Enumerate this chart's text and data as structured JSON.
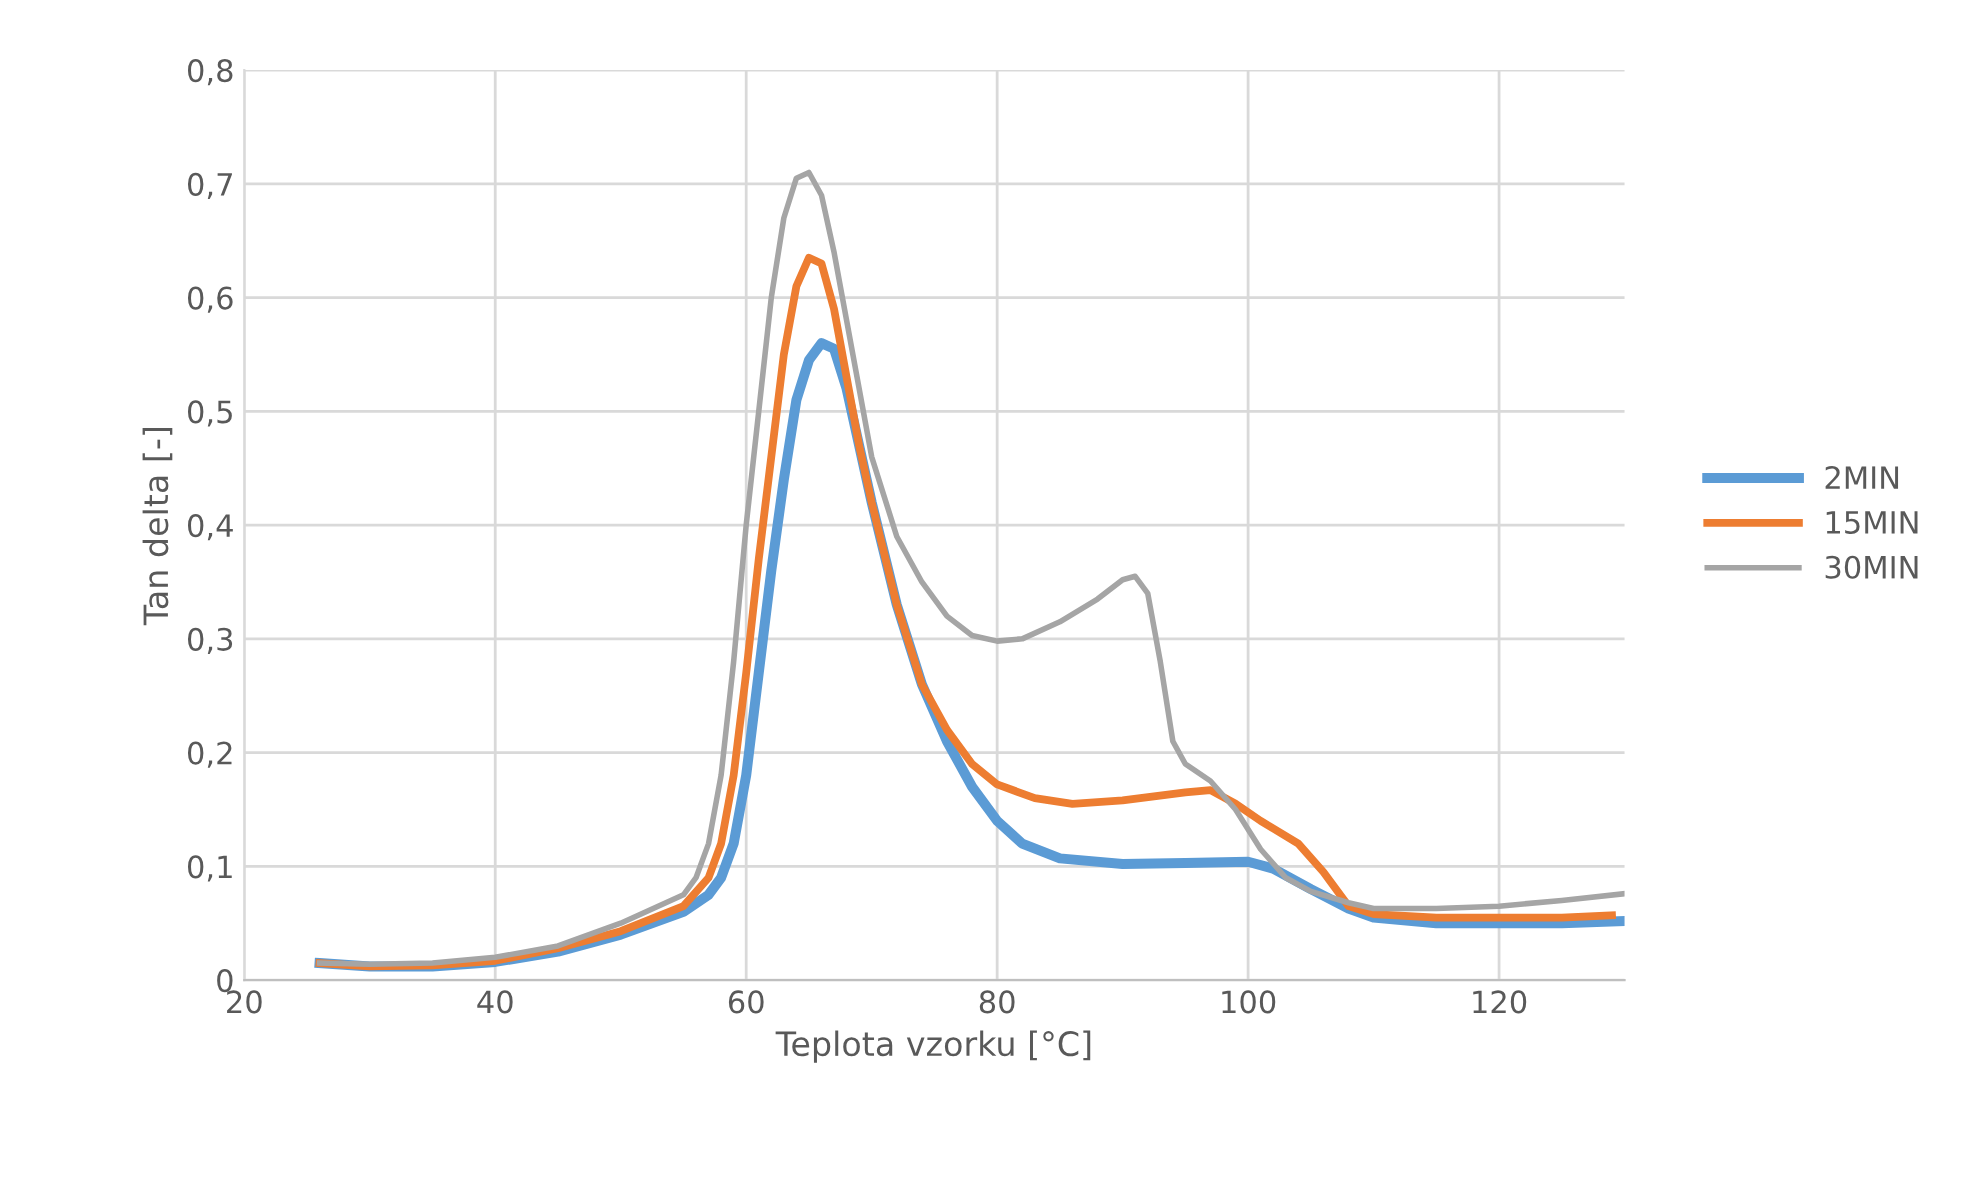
{
  "chart_data": {
    "type": "line",
    "xlabel": "Teplota vzorku [°C]",
    "ylabel": "Tan delta [-]",
    "xlim": [
      20,
      130
    ],
    "xticks": [
      20,
      40,
      60,
      80,
      100,
      120
    ],
    "ylim": [
      0,
      0.8
    ],
    "yticks": [
      0,
      {
        "value": 0.1,
        "label": "0,1"
      },
      {
        "value": 0.2,
        "label": "0,2"
      },
      {
        "value": 0.3,
        "label": "0,3"
      },
      {
        "value": 0.4,
        "label": "0,4"
      },
      {
        "value": 0.5,
        "label": "0,5"
      },
      {
        "value": 0.6,
        "label": "0,6"
      },
      {
        "value": 0.7,
        "label": "0,7"
      },
      {
        "value": 0.8,
        "label": "0,8"
      }
    ],
    "grid": true,
    "legend": "right",
    "marker": "none",
    "line_style": "solid",
    "series": [
      {
        "name": "2MIN",
        "color": "#5b9bd5",
        "x": [
          26,
          30,
          35,
          40,
          45,
          50,
          55,
          57,
          58,
          59,
          60,
          61,
          62,
          63,
          64,
          65,
          66,
          67,
          68,
          69,
          70,
          72,
          74,
          76,
          78,
          80,
          82,
          85,
          90,
          95,
          100,
          102,
          105,
          108,
          110,
          115,
          120,
          125,
          130
        ],
        "values": [
          0.015,
          0.012,
          0.012,
          0.016,
          0.025,
          0.04,
          0.06,
          0.075,
          0.09,
          0.12,
          0.18,
          0.27,
          0.36,
          0.44,
          0.51,
          0.545,
          0.56,
          0.555,
          0.52,
          0.47,
          0.42,
          0.33,
          0.26,
          0.21,
          0.17,
          0.14,
          0.12,
          0.107,
          0.102,
          0.103,
          0.104,
          0.098,
          0.08,
          0.063,
          0.055,
          0.05,
          0.05,
          0.05,
          0.052
        ]
      },
      {
        "name": "15MIN",
        "color": "#ed7d31",
        "x": [
          26,
          30,
          35,
          40,
          45,
          50,
          55,
          57,
          58,
          59,
          60,
          61,
          62,
          63,
          64,
          65,
          66,
          67,
          68,
          69,
          70,
          72,
          74,
          76,
          78,
          80,
          83,
          86,
          90,
          95,
          97,
          99,
          101,
          104,
          106,
          108,
          110,
          115,
          120,
          125,
          129
        ],
        "values": [
          0.015,
          0.012,
          0.013,
          0.017,
          0.028,
          0.043,
          0.065,
          0.09,
          0.12,
          0.18,
          0.27,
          0.37,
          0.46,
          0.55,
          0.61,
          0.635,
          0.63,
          0.59,
          0.53,
          0.47,
          0.42,
          0.33,
          0.26,
          0.22,
          0.19,
          0.172,
          0.16,
          0.155,
          0.158,
          0.165,
          0.167,
          0.155,
          0.14,
          0.12,
          0.095,
          0.065,
          0.058,
          0.055,
          0.055,
          0.055,
          0.057
        ]
      },
      {
        "name": "30MIN",
        "color": "#a5a5a5",
        "x": [
          26,
          30,
          35,
          40,
          45,
          50,
          55,
          56,
          57,
          58,
          59,
          60,
          61,
          62,
          63,
          64,
          65,
          66,
          67,
          68,
          69,
          70,
          72,
          74,
          76,
          78,
          80,
          82,
          85,
          88,
          90,
          91,
          92,
          93,
          94,
          95,
          97,
          99,
          101,
          103,
          105,
          108,
          110,
          115,
          120,
          125,
          130
        ],
        "values": [
          0.015,
          0.014,
          0.015,
          0.02,
          0.03,
          0.05,
          0.075,
          0.09,
          0.12,
          0.18,
          0.28,
          0.4,
          0.5,
          0.6,
          0.67,
          0.705,
          0.71,
          0.69,
          0.64,
          0.58,
          0.52,
          0.46,
          0.39,
          0.35,
          0.32,
          0.303,
          0.298,
          0.3,
          0.315,
          0.335,
          0.352,
          0.355,
          0.34,
          0.28,
          0.21,
          0.19,
          0.175,
          0.15,
          0.115,
          0.09,
          0.078,
          0.068,
          0.063,
          0.063,
          0.065,
          0.07,
          0.076
        ]
      }
    ]
  }
}
